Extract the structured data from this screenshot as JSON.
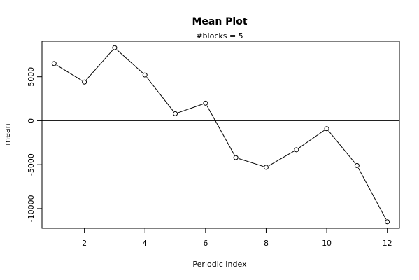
{
  "chart_data": {
    "type": "line",
    "title": "Mean Plot",
    "subtitle": "#blocks =  5",
    "xlabel": "Periodic Index",
    "ylabel": "mean",
    "x": [
      1,
      2,
      3,
      4,
      5,
      6,
      7,
      8,
      9,
      10,
      11,
      12
    ],
    "values": [
      6500,
      4400,
      8300,
      5200,
      800,
      2000,
      -4200,
      -5300,
      -3300,
      -900,
      -5100,
      -11500
    ],
    "xlim": [
      0.6,
      12.4
    ],
    "ylim": [
      -12240,
      9040
    ],
    "x_ticks": [
      2,
      4,
      6,
      8,
      10,
      12
    ],
    "x_tick_labels": [
      "2",
      "4",
      "6",
      "8",
      "10",
      "12"
    ],
    "y_ticks": [
      -10000,
      -5000,
      0,
      5000
    ],
    "y_tick_labels": [
      "-10000",
      "-5000",
      "0",
      "5000"
    ],
    "reference_line": 0,
    "marker": "open-circle",
    "grid": false,
    "legend": "none",
    "colors": {
      "line": "#000000",
      "background": "#ffffff"
    }
  }
}
